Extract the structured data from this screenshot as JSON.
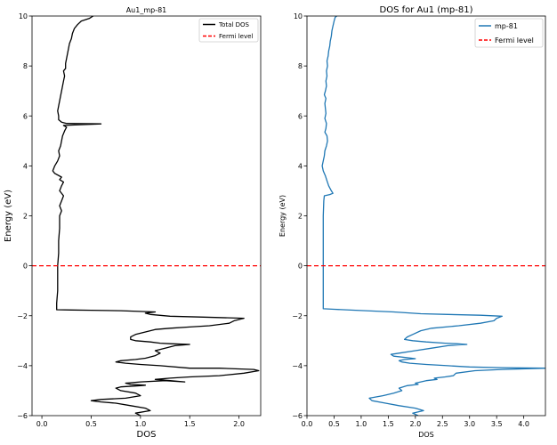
{
  "chart_data": [
    {
      "type": "line",
      "title": "Au1_mp-81",
      "xlabel": "DOS",
      "ylabel": "Energy (eV)",
      "xlim": [
        -0.1,
        2.22
      ],
      "ylim": [
        -6,
        10
      ],
      "xticks": [
        "0.0",
        "0.5",
        "1.0",
        "1.5",
        "2.0"
      ],
      "xtick_values": [
        0.0,
        0.5,
        1.0,
        1.5,
        2.0
      ],
      "yticks": [
        "−6",
        "−4",
        "−2",
        "0",
        "2",
        "4",
        "6",
        "8",
        "10"
      ],
      "ytick_values": [
        -6,
        -4,
        -2,
        0,
        2,
        4,
        6,
        8,
        10
      ],
      "legend_position": "top-right",
      "series": [
        {
          "name": "Total DOS",
          "color": "#000000",
          "style": "solid",
          "points": [
            [
              1.0,
              -6.0
            ],
            [
              0.95,
              -5.9
            ],
            [
              1.1,
              -5.8
            ],
            [
              1.05,
              -5.7
            ],
            [
              0.9,
              -5.6
            ],
            [
              0.75,
              -5.5
            ],
            [
              0.6,
              -5.45
            ],
            [
              0.5,
              -5.4
            ],
            [
              0.6,
              -5.35
            ],
            [
              0.85,
              -5.3
            ],
            [
              1.0,
              -5.2
            ],
            [
              0.95,
              -5.1
            ],
            [
              0.8,
              -5.0
            ],
            [
              0.75,
              -4.9
            ],
            [
              0.8,
              -4.85
            ],
            [
              1.0,
              -4.8
            ],
            [
              1.05,
              -4.78
            ],
            [
              0.9,
              -4.75
            ],
            [
              0.85,
              -4.7
            ],
            [
              1.0,
              -4.65
            ],
            [
              1.25,
              -4.6
            ],
            [
              1.45,
              -4.65
            ],
            [
              1.3,
              -4.6
            ],
            [
              1.15,
              -4.55
            ],
            [
              1.3,
              -4.5
            ],
            [
              1.5,
              -4.45
            ],
            [
              1.8,
              -4.4
            ],
            [
              2.05,
              -4.3
            ],
            [
              2.2,
              -4.2
            ],
            [
              2.15,
              -4.15
            ],
            [
              1.8,
              -4.1
            ],
            [
              1.5,
              -4.1
            ],
            [
              1.2,
              -4.0
            ],
            [
              1.0,
              -3.95
            ],
            [
              0.85,
              -3.9
            ],
            [
              0.75,
              -3.85
            ],
            [
              0.8,
              -3.8
            ],
            [
              0.95,
              -3.75
            ],
            [
              1.05,
              -3.7
            ],
            [
              1.15,
              -3.6
            ],
            [
              1.2,
              -3.5
            ],
            [
              1.15,
              -3.4
            ],
            [
              1.25,
              -3.3
            ],
            [
              1.35,
              -3.2
            ],
            [
              1.5,
              -3.15
            ],
            [
              1.3,
              -3.12
            ],
            [
              1.2,
              -3.1
            ],
            [
              1.1,
              -3.05
            ],
            [
              0.95,
              -3.0
            ],
            [
              0.9,
              -2.95
            ],
            [
              0.9,
              -2.85
            ],
            [
              0.95,
              -2.75
            ],
            [
              1.05,
              -2.65
            ],
            [
              1.15,
              -2.55
            ],
            [
              1.3,
              -2.5
            ],
            [
              1.5,
              -2.45
            ],
            [
              1.7,
              -2.4
            ],
            [
              1.9,
              -2.3
            ],
            [
              1.95,
              -2.2
            ],
            [
              2.05,
              -2.1
            ],
            [
              1.6,
              -2.05
            ],
            [
              1.3,
              -2.02
            ],
            [
              1.1,
              -1.95
            ],
            [
              1.05,
              -1.9
            ],
            [
              1.15,
              -1.85
            ],
            [
              0.8,
              -1.8
            ],
            [
              0.5,
              -1.78
            ],
            [
              0.3,
              -1.77
            ],
            [
              0.15,
              -1.76
            ],
            [
              0.15,
              -1.5
            ],
            [
              0.16,
              -1.0
            ],
            [
              0.16,
              0.0
            ],
            [
              0.17,
              0.5
            ],
            [
              0.17,
              1.0
            ],
            [
              0.18,
              1.5
            ],
            [
              0.18,
              2.0
            ],
            [
              0.2,
              2.2
            ],
            [
              0.18,
              2.4
            ],
            [
              0.2,
              2.6
            ],
            [
              0.22,
              2.8
            ],
            [
              0.18,
              3.0
            ],
            [
              0.2,
              3.2
            ],
            [
              0.22,
              3.35
            ],
            [
              0.18,
              3.45
            ],
            [
              0.2,
              3.55
            ],
            [
              0.13,
              3.7
            ],
            [
              0.11,
              3.8
            ],
            [
              0.12,
              3.9
            ],
            [
              0.13,
              4.0
            ],
            [
              0.16,
              4.2
            ],
            [
              0.18,
              4.4
            ],
            [
              0.17,
              4.6
            ],
            [
              0.19,
              4.8
            ],
            [
              0.2,
              5.0
            ],
            [
              0.21,
              5.2
            ],
            [
              0.23,
              5.4
            ],
            [
              0.25,
              5.55
            ],
            [
              0.22,
              5.62
            ],
            [
              0.6,
              5.68
            ],
            [
              0.25,
              5.7
            ],
            [
              0.2,
              5.75
            ],
            [
              0.17,
              5.85
            ],
            [
              0.17,
              6.0
            ],
            [
              0.16,
              6.2
            ],
            [
              0.17,
              6.4
            ],
            [
              0.18,
              6.6
            ],
            [
              0.19,
              6.8
            ],
            [
              0.2,
              7.0
            ],
            [
              0.21,
              7.2
            ],
            [
              0.22,
              7.4
            ],
            [
              0.23,
              7.6
            ],
            [
              0.22,
              7.8
            ],
            [
              0.24,
              7.9
            ],
            [
              0.24,
              8.1
            ],
            [
              0.25,
              8.3
            ],
            [
              0.26,
              8.5
            ],
            [
              0.27,
              8.7
            ],
            [
              0.28,
              8.9
            ],
            [
              0.3,
              9.1
            ],
            [
              0.31,
              9.3
            ],
            [
              0.33,
              9.5
            ],
            [
              0.36,
              9.65
            ],
            [
              0.4,
              9.8
            ],
            [
              0.48,
              9.9
            ],
            [
              0.52,
              10.0
            ]
          ]
        },
        {
          "name": "Fermi level",
          "color": "#ff0000",
          "style": "dashed",
          "y": 0
        }
      ]
    },
    {
      "type": "line",
      "title": "DOS for Au1 (mp-81)",
      "xlabel": "DOS",
      "ylabel": "Energy (eV)",
      "xlim": [
        0.0,
        4.4
      ],
      "ylim": [
        -6,
        10
      ],
      "xticks": [
        "0.0",
        "0.5",
        "1.0",
        "1.5",
        "2.0",
        "2.5",
        "3.0",
        "3.5",
        "4.0"
      ],
      "xtick_values": [
        0.0,
        0.5,
        1.0,
        1.5,
        2.0,
        2.5,
        3.0,
        3.5,
        4.0
      ],
      "yticks": [
        "−6",
        "−4",
        "−2",
        "0",
        "2",
        "4",
        "6",
        "8",
        "10"
      ],
      "ytick_values": [
        -6,
        -4,
        -2,
        0,
        2,
        4,
        6,
        8,
        10
      ],
      "legend_position": "top-right",
      "series": [
        {
          "name": "mp-81",
          "color": "#1f77b4",
          "style": "solid",
          "points": [
            [
              2.05,
              -6.0
            ],
            [
              1.95,
              -5.9
            ],
            [
              2.15,
              -5.8
            ],
            [
              2.0,
              -5.7
            ],
            [
              1.7,
              -5.6
            ],
            [
              1.45,
              -5.5
            ],
            [
              1.2,
              -5.4
            ],
            [
              1.15,
              -5.3
            ],
            [
              1.4,
              -5.2
            ],
            [
              1.6,
              -5.1
            ],
            [
              1.75,
              -5.0
            ],
            [
              1.7,
              -4.9
            ],
            [
              1.85,
              -4.8
            ],
            [
              2.05,
              -4.75
            ],
            [
              2.0,
              -4.7
            ],
            [
              2.2,
              -4.6
            ],
            [
              2.4,
              -4.55
            ],
            [
              2.35,
              -4.5
            ],
            [
              2.55,
              -4.45
            ],
            [
              2.7,
              -4.4
            ],
            [
              2.75,
              -4.3
            ],
            [
              3.1,
              -4.2
            ],
            [
              3.6,
              -4.15
            ],
            [
              4.4,
              -4.1
            ],
            [
              3.6,
              -4.08
            ],
            [
              3.0,
              -4.05
            ],
            [
              2.6,
              -4.0
            ],
            [
              2.2,
              -3.95
            ],
            [
              1.9,
              -3.9
            ],
            [
              1.75,
              -3.85
            ],
            [
              1.7,
              -3.8
            ],
            [
              1.8,
              -3.75
            ],
            [
              2.0,
              -3.72
            ],
            [
              1.85,
              -3.68
            ],
            [
              1.6,
              -3.62
            ],
            [
              1.55,
              -3.55
            ],
            [
              1.7,
              -3.5
            ],
            [
              2.0,
              -3.4
            ],
            [
              2.3,
              -3.3
            ],
            [
              2.6,
              -3.2
            ],
            [
              2.95,
              -3.15
            ],
            [
              2.75,
              -3.12
            ],
            [
              2.55,
              -3.1
            ],
            [
              2.2,
              -3.05
            ],
            [
              1.95,
              -3.0
            ],
            [
              1.8,
              -2.95
            ],
            [
              1.85,
              -2.85
            ],
            [
              1.95,
              -2.75
            ],
            [
              2.1,
              -2.6
            ],
            [
              2.3,
              -2.5
            ],
            [
              2.8,
              -2.4
            ],
            [
              3.2,
              -2.3
            ],
            [
              3.45,
              -2.2
            ],
            [
              3.5,
              -2.1
            ],
            [
              3.6,
              -2.02
            ],
            [
              3.2,
              -1.98
            ],
            [
              2.6,
              -1.95
            ],
            [
              2.1,
              -1.92
            ],
            [
              1.6,
              -1.85
            ],
            [
              0.9,
              -1.78
            ],
            [
              0.5,
              -1.74
            ],
            [
              0.3,
              -1.72
            ],
            [
              0.3,
              -1.0
            ],
            [
              0.3,
              0.0
            ],
            [
              0.3,
              1.0
            ],
            [
              0.3,
              2.0
            ],
            [
              0.31,
              2.6
            ],
            [
              0.32,
              2.8
            ],
            [
              0.42,
              2.85
            ],
            [
              0.48,
              2.9
            ],
            [
              0.45,
              3.0
            ],
            [
              0.4,
              3.2
            ],
            [
              0.37,
              3.4
            ],
            [
              0.34,
              3.6
            ],
            [
              0.3,
              3.8
            ],
            [
              0.28,
              4.0
            ],
            [
              0.3,
              4.2
            ],
            [
              0.32,
              4.4
            ],
            [
              0.33,
              4.6
            ],
            [
              0.36,
              4.8
            ],
            [
              0.38,
              5.0
            ],
            [
              0.37,
              5.2
            ],
            [
              0.33,
              5.35
            ],
            [
              0.35,
              5.5
            ],
            [
              0.36,
              5.7
            ],
            [
              0.33,
              5.9
            ],
            [
              0.35,
              6.1
            ],
            [
              0.34,
              6.3
            ],
            [
              0.33,
              6.5
            ],
            [
              0.35,
              6.7
            ],
            [
              0.32,
              6.85
            ],
            [
              0.34,
              7.0
            ],
            [
              0.36,
              7.2
            ],
            [
              0.35,
              7.4
            ],
            [
              0.37,
              7.6
            ],
            [
              0.36,
              7.8
            ],
            [
              0.38,
              8.0
            ],
            [
              0.37,
              8.2
            ],
            [
              0.39,
              8.4
            ],
            [
              0.4,
              8.6
            ],
            [
              0.42,
              8.8
            ],
            [
              0.43,
              9.0
            ],
            [
              0.45,
              9.2
            ],
            [
              0.46,
              9.4
            ],
            [
              0.48,
              9.6
            ],
            [
              0.5,
              9.8
            ],
            [
              0.52,
              9.95
            ],
            [
              0.55,
              10.0
            ]
          ]
        },
        {
          "name": "Fermi level",
          "color": "#ff0000",
          "style": "dashed",
          "y": 0
        }
      ]
    }
  ]
}
